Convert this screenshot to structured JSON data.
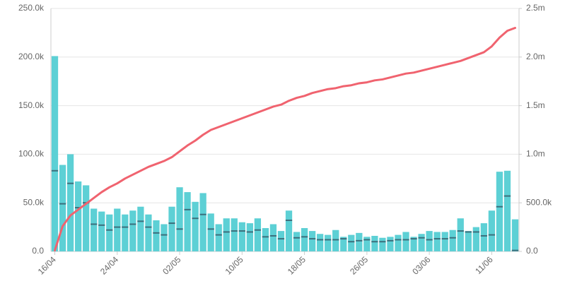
{
  "chart_data": {
    "type": "bar-line",
    "categories": [
      "16/04",
      null,
      null,
      null,
      null,
      null,
      null,
      null,
      "24/04",
      null,
      null,
      null,
      null,
      null,
      null,
      null,
      "02/05",
      null,
      null,
      null,
      null,
      null,
      null,
      null,
      "10/05",
      null,
      null,
      null,
      null,
      null,
      null,
      null,
      "18/05",
      null,
      null,
      null,
      null,
      null,
      null,
      null,
      "26/05",
      null,
      null,
      null,
      null,
      null,
      null,
      null,
      "03/06",
      null,
      null,
      null,
      null,
      null,
      null,
      null,
      "11/06",
      null,
      null,
      null
    ],
    "series": [
      {
        "type": "bar",
        "color": "#5dd0d5",
        "values": [
          201000,
          89000,
          100000,
          72000,
          68000,
          44000,
          41000,
          38000,
          44000,
          38000,
          42000,
          46000,
          38000,
          32000,
          28000,
          46000,
          66000,
          61000,
          51000,
          60000,
          39000,
          28000,
          34000,
          34000,
          30000,
          29000,
          34000,
          24000,
          28000,
          21000,
          42000,
          20000,
          24000,
          21000,
          18000,
          17000,
          22000,
          15000,
          17000,
          19000,
          15000,
          16000,
          14000,
          15000,
          17000,
          20000,
          15000,
          18000,
          21000,
          20000,
          20000,
          22000,
          34000,
          21000,
          25000,
          29000,
          42000,
          82000,
          83000,
          33000
        ]
      },
      {
        "type": "dash",
        "color": "#3b6f7c",
        "values": [
          83000,
          49000,
          70000,
          45000,
          50000,
          28000,
          27000,
          22000,
          25000,
          25000,
          28000,
          31000,
          25000,
          19000,
          17000,
          29000,
          23000,
          43000,
          34000,
          38000,
          23000,
          17000,
          20000,
          21000,
          21000,
          20000,
          22000,
          15000,
          16000,
          13000,
          32000,
          14000,
          15000,
          13000,
          12000,
          12000,
          12000,
          13000,
          10000,
          11000,
          12000,
          10000,
          10000,
          11000,
          12000,
          12000,
          13000,
          14000,
          12000,
          13000,
          13000,
          14000,
          21000,
          20000,
          20000,
          16000,
          17000,
          46000,
          57000,
          1000
        ]
      },
      {
        "type": "line",
        "axis": "y2",
        "color": "#f0636f",
        "values": [
          10000,
          260000,
          370000,
          430000,
          490000,
          550000,
          610000,
          660000,
          700000,
          750000,
          790000,
          830000,
          870000,
          900000,
          930000,
          970000,
          1030000,
          1090000,
          1140000,
          1200000,
          1250000,
          1280000,
          1310000,
          1340000,
          1370000,
          1400000,
          1430000,
          1460000,
          1490000,
          1510000,
          1550000,
          1580000,
          1600000,
          1630000,
          1650000,
          1670000,
          1680000,
          1700000,
          1710000,
          1730000,
          1740000,
          1760000,
          1770000,
          1790000,
          1810000,
          1830000,
          1840000,
          1860000,
          1880000,
          1900000,
          1920000,
          1940000,
          1960000,
          1990000,
          2020000,
          2050000,
          2110000,
          2200000,
          2270000,
          2300000
        ]
      }
    ],
    "ylim": [
      0,
      250000
    ],
    "yticks": [
      {
        "value": 0,
        "label": "0.0"
      },
      {
        "value": 50000,
        "label": "50.0k"
      },
      {
        "value": 100000,
        "label": "100.0k"
      },
      {
        "value": 150000,
        "label": "150.0k"
      },
      {
        "value": 200000,
        "label": "200.0k"
      },
      {
        "value": 250000,
        "label": "250.0k"
      }
    ],
    "y2lim": [
      0,
      2500000
    ],
    "y2ticks": [
      {
        "value": 0,
        "label": "0.0"
      },
      {
        "value": 500000,
        "label": "500.0k"
      },
      {
        "value": 1000000,
        "label": "1.0m"
      },
      {
        "value": 1500000,
        "label": "1.5m"
      },
      {
        "value": 2000000,
        "label": "2.0m"
      },
      {
        "value": 2500000,
        "label": "2.5m"
      }
    ],
    "grid": true
  }
}
